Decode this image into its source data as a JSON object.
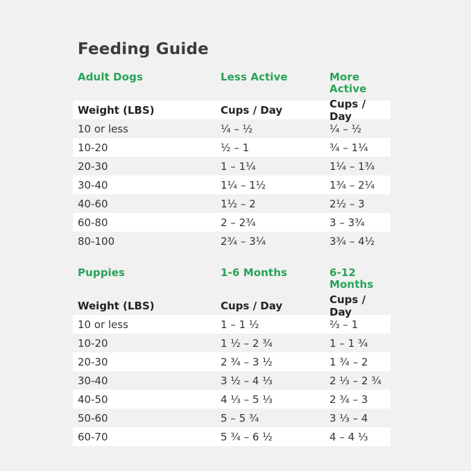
{
  "title": "Feeding Guide",
  "colors": {
    "page_background": "#f1f1f1",
    "row_stripe": "#ffffff",
    "accent_green": "#27a356",
    "title_text": "#3b3b3b",
    "body_text": "#333333"
  },
  "adult": {
    "section_label": "Adult Dogs",
    "col2_label": "Less Active",
    "col3_label": "More Active",
    "subheader": {
      "weight": "Weight (LBS)",
      "cups1": "Cups / Day",
      "cups2": "Cups / Day"
    },
    "rows": [
      {
        "weight": "10 or less",
        "less": "¼ – ½",
        "more": "¼ – ½"
      },
      {
        "weight": "10-20",
        "less": "½ – 1",
        "more": "¾ – 1¼"
      },
      {
        "weight": "20-30",
        "less": "1 – 1¼",
        "more": "1¼ – 1¾"
      },
      {
        "weight": "30-40",
        "less": "1¼ – 1½",
        "more": "1¾ – 2¼"
      },
      {
        "weight": "40-60",
        "less": "1½ – 2",
        "more": "2½ – 3"
      },
      {
        "weight": "60-80",
        "less": "2 – 2¾",
        "more": "3 – 3¾"
      },
      {
        "weight": "80-100",
        "less": "2¾ – 3¼",
        "more": "3¾ – 4½"
      }
    ]
  },
  "puppies": {
    "section_label": "Puppies",
    "col2_label": "1-6 Months",
    "col3_label": "6-12 Months",
    "subheader": {
      "weight": "Weight (LBS)",
      "cups1": "Cups / Day",
      "cups2": "Cups / Day"
    },
    "rows": [
      {
        "weight": "10 or less",
        "m16": "1 – 1 ½",
        "m612": "⅔ – 1"
      },
      {
        "weight": "10-20",
        "m16": "1 ½ – 2 ¾",
        "m612": "1 – 1 ¾"
      },
      {
        "weight": "20-30",
        "m16": "2 ¾ – 3 ½",
        "m612": "1 ¾ – 2"
      },
      {
        "weight": "30-40",
        "m16": "3 ½ – 4 ⅓",
        "m612": "2 ⅓ – 2 ¾"
      },
      {
        "weight": "40-50",
        "m16": "4 ⅓ – 5 ⅓",
        "m612": "2 ¾ – 3"
      },
      {
        "weight": "50-60",
        "m16": "5 – 5 ¾",
        "m612": "3 ⅓ – 4"
      },
      {
        "weight": "60-70",
        "m16": "5 ¾ – 6 ½",
        "m612": "4 – 4 ⅓"
      }
    ]
  }
}
